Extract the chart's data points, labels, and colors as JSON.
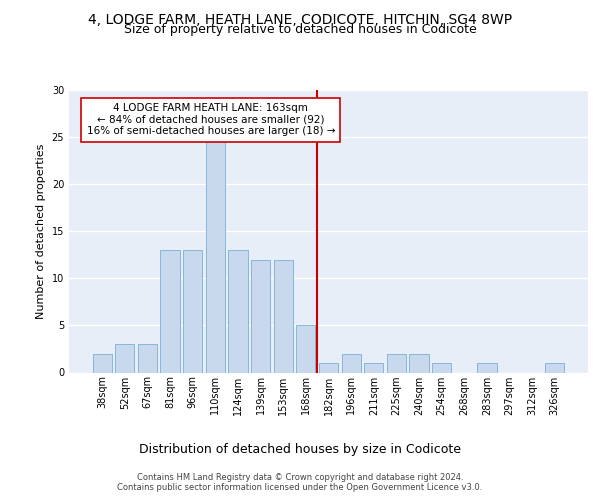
{
  "title1": "4, LODGE FARM, HEATH LANE, CODICOTE, HITCHIN, SG4 8WP",
  "title2": "Size of property relative to detached houses in Codicote",
  "xlabel": "Distribution of detached houses by size in Codicote",
  "ylabel": "Number of detached properties",
  "categories": [
    "38sqm",
    "52sqm",
    "67sqm",
    "81sqm",
    "96sqm",
    "110sqm",
    "124sqm",
    "139sqm",
    "153sqm",
    "168sqm",
    "182sqm",
    "196sqm",
    "211sqm",
    "225sqm",
    "240sqm",
    "254sqm",
    "268sqm",
    "283sqm",
    "297sqm",
    "312sqm",
    "326sqm"
  ],
  "values": [
    2,
    3,
    3,
    13,
    13,
    25,
    13,
    12,
    12,
    5,
    1,
    2,
    1,
    2,
    2,
    1,
    0,
    1,
    0,
    0,
    1
  ],
  "bar_color": "#c8d9ee",
  "bar_edgecolor": "#7aaed6",
  "vline_x_index": 9.5,
  "vline_color": "#cc0000",
  "annotation_text": "4 LODGE FARM HEATH LANE: 163sqm\n← 84% of detached houses are smaller (92)\n16% of semi-detached houses are larger (18) →",
  "annotation_box_facecolor": "white",
  "annotation_box_edgecolor": "#cc0000",
  "ylim": [
    0,
    30
  ],
  "yticks": [
    0,
    5,
    10,
    15,
    20,
    25,
    30
  ],
  "footer": "Contains HM Land Registry data © Crown copyright and database right 2024.\nContains public sector information licensed under the Open Government Licence v3.0.",
  "background_color": "#e8eef8",
  "grid_color": "white",
  "title1_fontsize": 10,
  "title2_fontsize": 9,
  "xlabel_fontsize": 9,
  "ylabel_fontsize": 8,
  "tick_fontsize": 7,
  "annotation_fontsize": 7.5,
  "footer_fontsize": 6
}
